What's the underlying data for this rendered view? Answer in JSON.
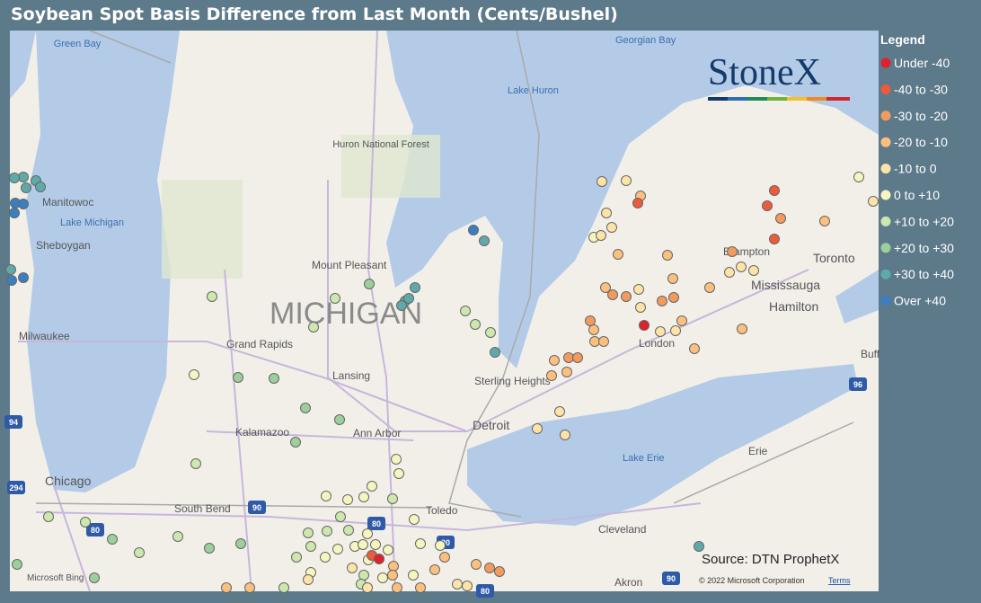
{
  "title": "Soybean Spot Basis Difference from Last Month (Cents/Bushel)",
  "legend": {
    "title": "Legend",
    "items": [
      {
        "label": "Under -40",
        "color": "#e0202a"
      },
      {
        "label": "-40 to -30",
        "color": "#ee5a3c"
      },
      {
        "label": "-30 to -20",
        "color": "#f39a5e"
      },
      {
        "label": "-20 to -10",
        "color": "#fbc07e"
      },
      {
        "label": "-10 to 0",
        "color": "#fde3a8"
      },
      {
        "label": "0 to +10",
        "color": "#f6f5c0"
      },
      {
        "label": "+10 to +20",
        "color": "#cde8ae"
      },
      {
        "label": "+20 to +30",
        "color": "#9ccf9a"
      },
      {
        "label": "+30 to +40",
        "color": "#5faaa9"
      },
      {
        "label": "Over +40",
        "color": "#3a7fbf"
      }
    ]
  },
  "logo": "StoneX",
  "source": "Source: DTN ProphetX",
  "attribution": {
    "bing": "Microsoft Bing",
    "copyright": "© 2022 Microsoft Corporation",
    "terms": "Terms"
  },
  "map_labels": [
    "Green Bay",
    "Manitowoc",
    "Lake Michigan",
    "Sheboygan",
    "Milwaukee",
    "Chicago",
    "Mount Pleasant",
    "MICHIGAN",
    "Grand Rapids",
    "Lansing",
    "Kalamazoo",
    "Ann Arbor",
    "Detroit",
    "Sterling Heights",
    "Toledo",
    "South Bend",
    "Lake Huron",
    "Georgian Bay",
    "Huron National Forest",
    "Brampton",
    "Toronto",
    "Mississauga",
    "Hamilton",
    "London",
    "Lake Erie",
    "Erie",
    "Cleveland",
    "Akron",
    "Buff"
  ],
  "highway_shields": [
    "94",
    "294",
    "80",
    "90",
    "80",
    "90",
    "96",
    "90",
    "80"
  ]
}
